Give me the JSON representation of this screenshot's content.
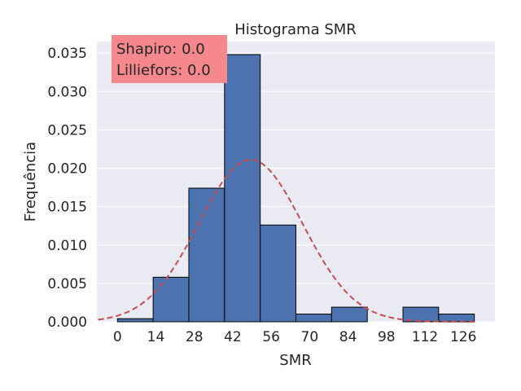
{
  "chart_data": {
    "type": "bar",
    "title": "Histograma SMR",
    "xlabel": "SMR",
    "ylabel": "Frequência",
    "xlim": [
      -7.5,
      137.5
    ],
    "ylim": [
      0,
      0.0365
    ],
    "x_ticks": [
      0,
      14,
      28,
      42,
      56,
      70,
      84,
      98,
      112,
      126
    ],
    "y_ticks": [
      0.0,
      0.005,
      0.01,
      0.015,
      0.02,
      0.025,
      0.03,
      0.035
    ],
    "y_tick_labels": [
      "0.000",
      "0.005",
      "0.010",
      "0.015",
      "0.020",
      "0.025",
      "0.030",
      "0.035"
    ],
    "bin_edges": [
      0,
      13,
      26,
      39,
      52,
      65,
      78,
      91,
      104,
      117,
      130
    ],
    "values": [
      0.0004,
      0.0058,
      0.0174,
      0.0348,
      0.0126,
      0.001,
      0.0019,
      0,
      0.0019,
      0.001
    ],
    "normal_fit": {
      "mean": 48.5,
      "std": 18.9,
      "color": "#c44e52",
      "style": "dashed"
    },
    "annotation": {
      "lines": [
        "Shapiro: 0.0",
        "Lilliefors: 0.0"
      ],
      "background": "#f4888c"
    },
    "bar_color": "#4c72b0",
    "background": "#eaeaf2",
    "grid": true
  }
}
